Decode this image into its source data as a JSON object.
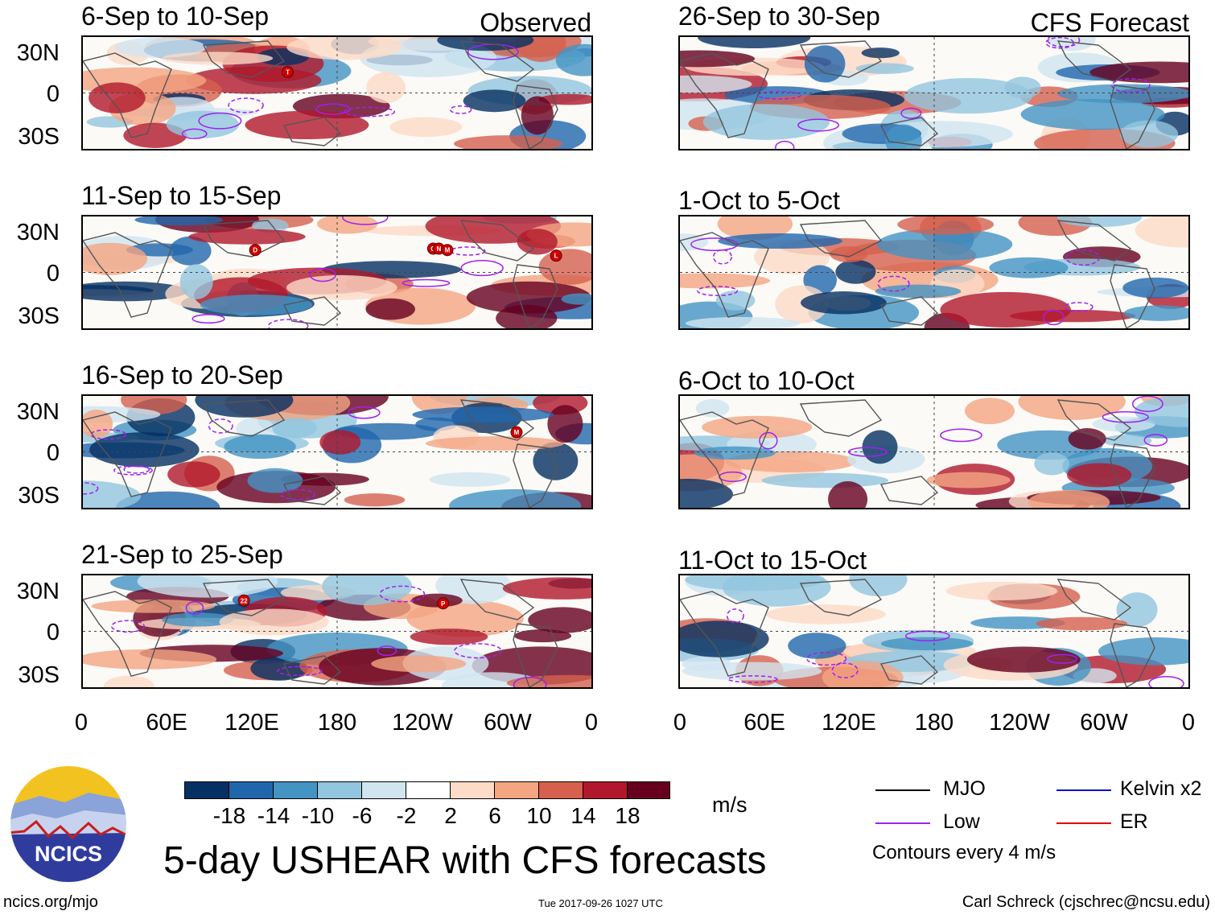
{
  "column_labels": {
    "observed": "Observed",
    "forecast": "CFS Forecast"
  },
  "panels": [
    {
      "title": "6-Sep to 10-Sep",
      "column": "observed"
    },
    {
      "title": "11-Sep to 15-Sep",
      "column": "observed"
    },
    {
      "title": "16-Sep to 20-Sep",
      "column": "observed"
    },
    {
      "title": "21-Sep to 25-Sep",
      "column": "observed"
    },
    {
      "title": "26-Sep to 30-Sep",
      "column": "forecast"
    },
    {
      "title": "1-Oct to 5-Oct",
      "column": "forecast"
    },
    {
      "title": "6-Oct to 10-Oct",
      "column": "forecast"
    },
    {
      "title": "11-Oct to 15-Oct",
      "column": "forecast"
    }
  ],
  "lat_labels": [
    "30N",
    "0",
    "30S"
  ],
  "lon_labels": [
    "0",
    "60E",
    "120E",
    "180",
    "120W",
    "60W",
    "0"
  ],
  "storm_markers": [
    {
      "panel": 0,
      "label": "T",
      "lon_deg": 145,
      "lat_deg": 15
    },
    {
      "panel": 1,
      "label": "D",
      "lon_deg": 122,
      "lat_deg": 16
    },
    {
      "panel": 1,
      "label": "O",
      "lon_deg": 248,
      "lat_deg": 17
    },
    {
      "panel": 1,
      "label": "N",
      "lon_deg": 252,
      "lat_deg": 17
    },
    {
      "panel": 1,
      "label": "M",
      "lon_deg": 258,
      "lat_deg": 16
    },
    {
      "panel": 1,
      "label": "L",
      "lon_deg": 335,
      "lat_deg": 12
    },
    {
      "panel": 2,
      "label": "M",
      "lon_deg": 307,
      "lat_deg": 14
    },
    {
      "panel": 3,
      "label": "22",
      "lon_deg": 114,
      "lat_deg": 22
    },
    {
      "panel": 3,
      "label": "P",
      "lon_deg": 255,
      "lat_deg": 20
    }
  ],
  "colorbar": {
    "colors": [
      "#053061",
      "#2166ac",
      "#4393c3",
      "#92c5de",
      "#d1e5f0",
      "#ffffff",
      "#fddbc7",
      "#f4a582",
      "#d6604d",
      "#b2182b",
      "#67001f"
    ],
    "labels": [
      "-18",
      "-14",
      "-10",
      "-6",
      "-2",
      "2",
      "6",
      "10",
      "14",
      "18"
    ],
    "units": "m/s"
  },
  "legend": {
    "items": [
      {
        "label": "MJO",
        "color": "#000000"
      },
      {
        "label": "Low",
        "color": "#a020f0"
      },
      {
        "label": "Kelvin x2",
        "color": "#1010c8"
      },
      {
        "label": "ER",
        "color": "#e00000"
      }
    ],
    "note": "Contours every 4 m/s"
  },
  "logo": {
    "text": "NCICS"
  },
  "main_title": "5-day USHEAR with CFS forecasts",
  "footer": {
    "url": "ncics.org/mjo",
    "timestamp": "Tue 2017-09-26 1027 UTC",
    "credit": "Carl Schreck (cjschrec@ncsu.edu)"
  }
}
